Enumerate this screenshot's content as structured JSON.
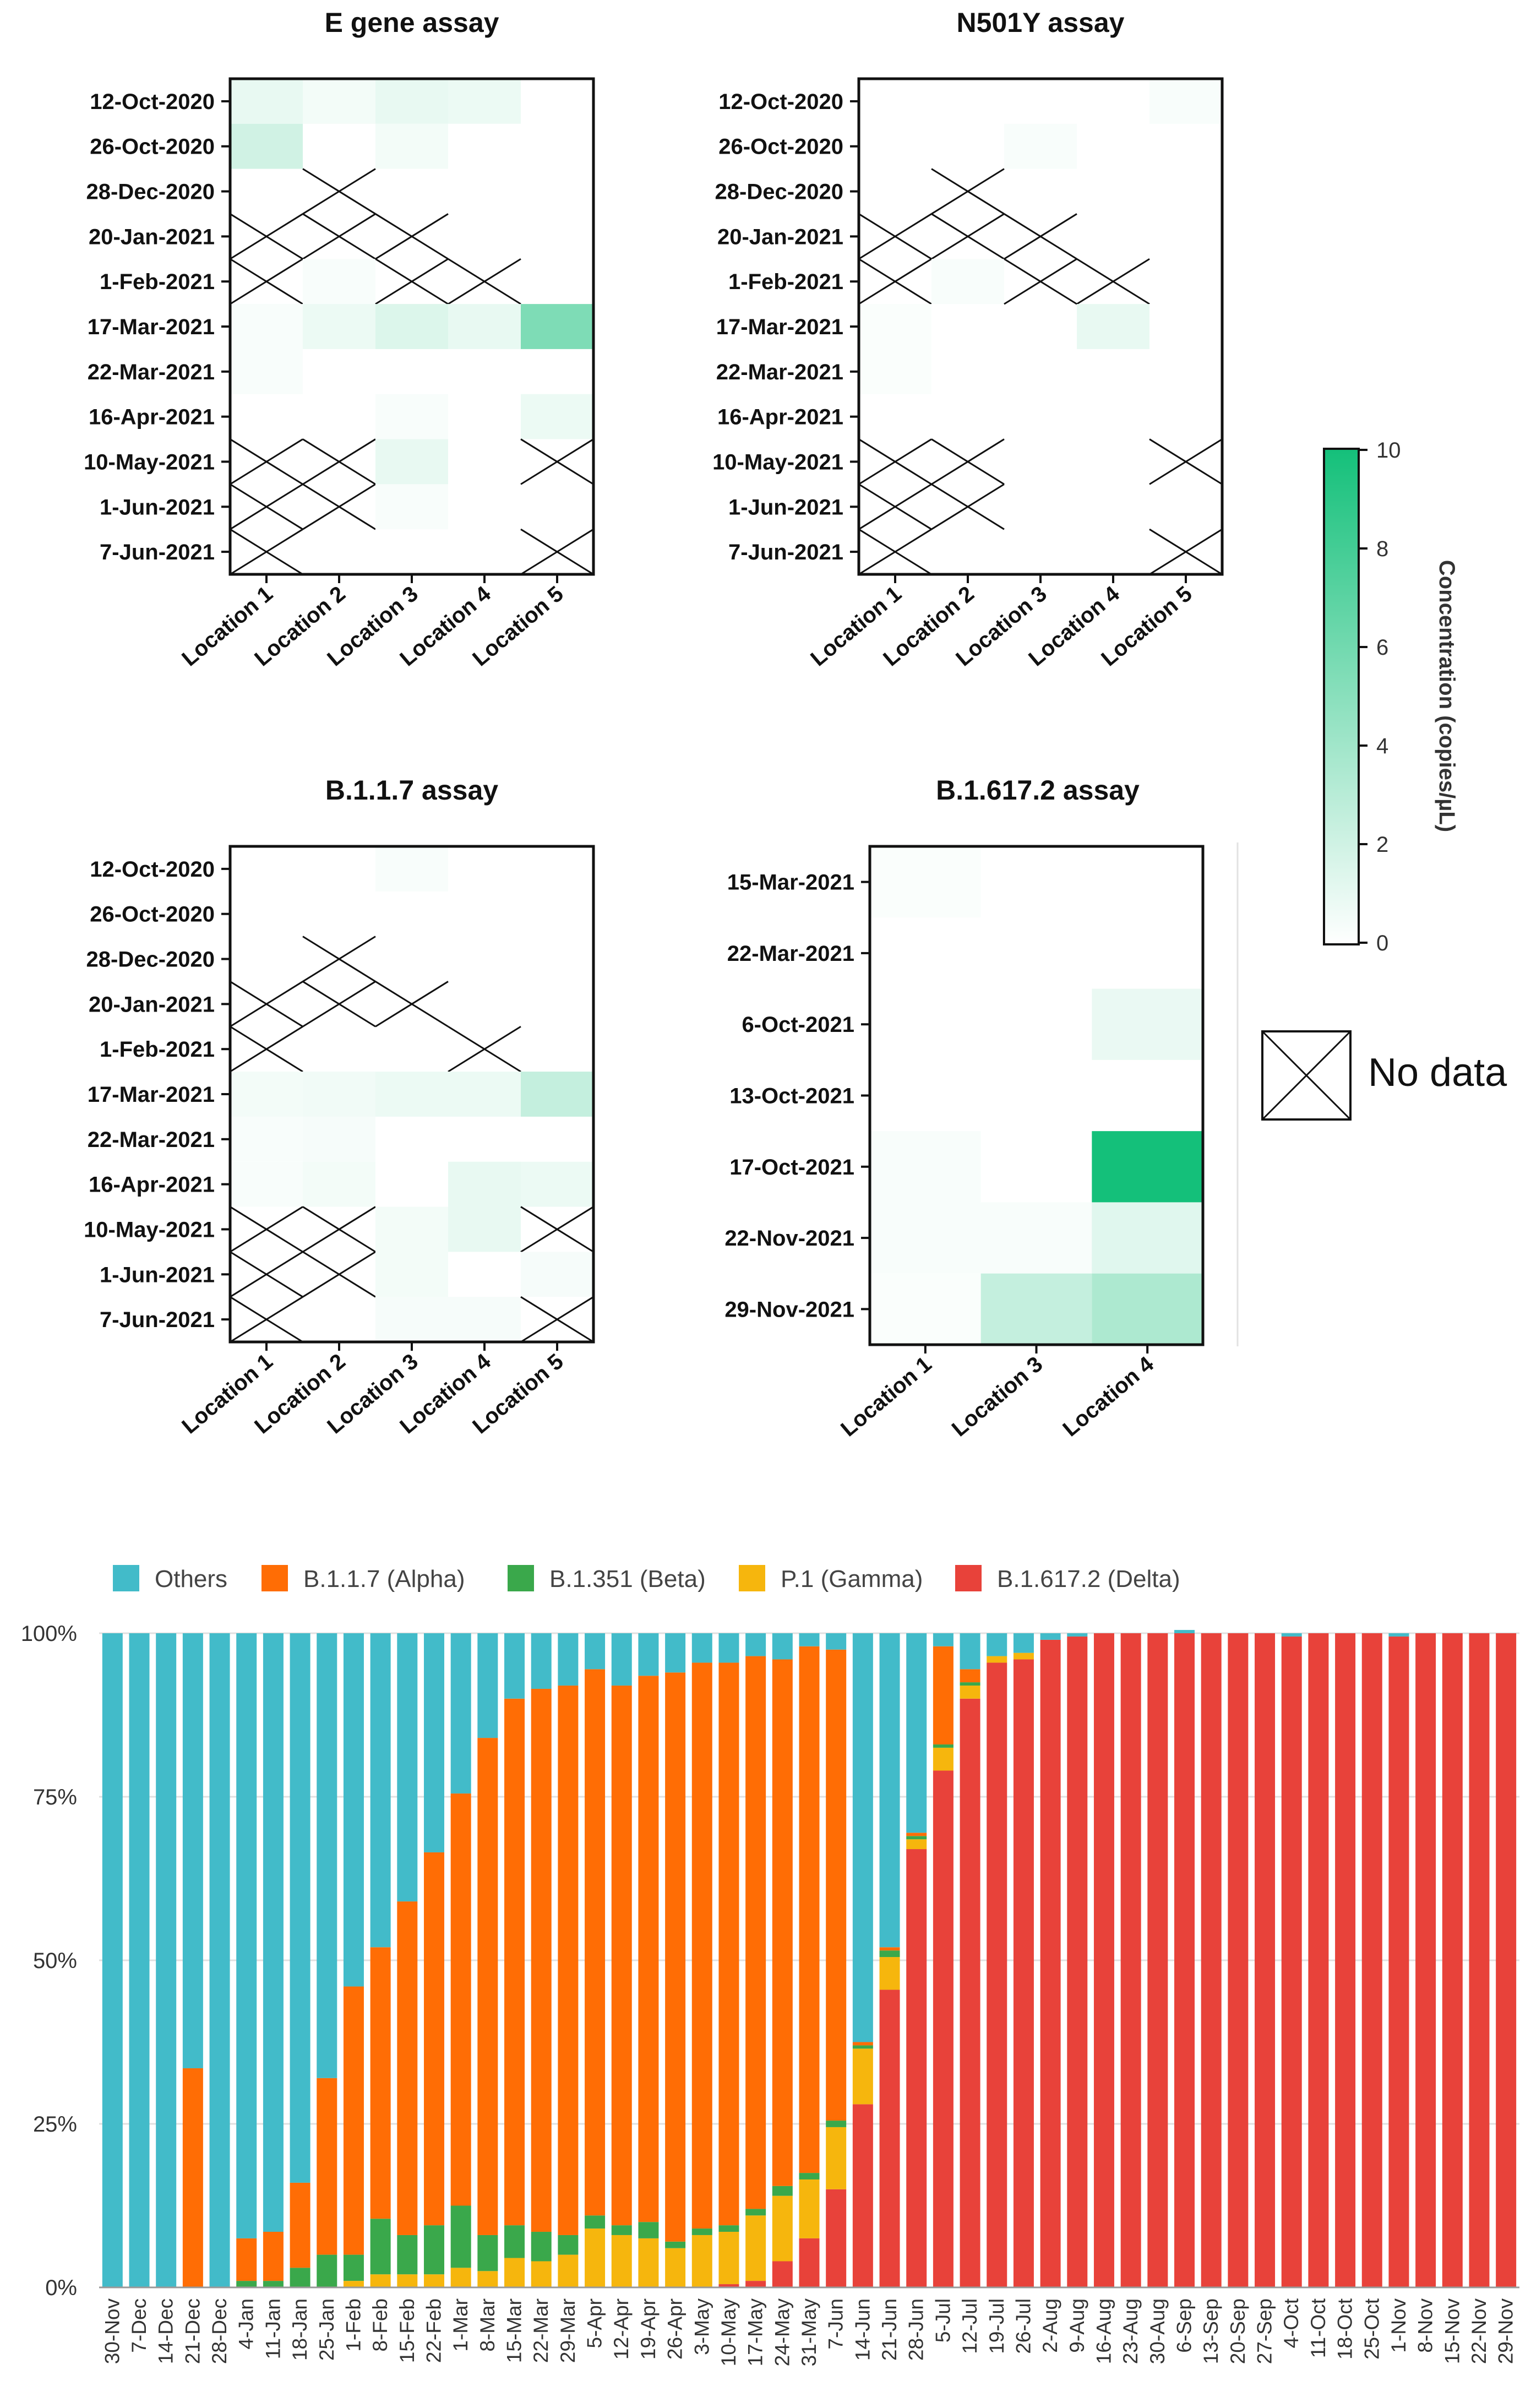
{
  "figure": {
    "no_data_label": "No data",
    "colorbar": {
      "title": "Concentration (copies/µL)",
      "ticks": [
        "0",
        "2",
        "4",
        "6",
        "8",
        "10"
      ],
      "min": 0,
      "max": 10,
      "color_low": "#ffffff",
      "color_high": "#14c07a"
    }
  },
  "chart_data": [
    {
      "type": "heatmap",
      "title": "E gene assay",
      "rows": [
        "12-Oct-2020",
        "26-Oct-2020",
        "28-Dec-2020",
        "20-Jan-2021",
        "1-Feb-2021",
        "17-Mar-2021",
        "22-Mar-2021",
        "16-Apr-2021",
        "10-May-2021",
        "1-Jun-2021",
        "7-Jun-2021"
      ],
      "columns": [
        "Location 1",
        "Location 2",
        "Location 3",
        "Location 4",
        "Location 5"
      ],
      "values": [
        [
          1.0,
          0.5,
          1.0,
          0.8,
          0
        ],
        [
          2.0,
          0,
          0.5,
          0,
          0
        ],
        [
          0,
          null,
          0,
          0,
          0
        ],
        [
          null,
          null,
          null,
          0,
          0
        ],
        [
          null,
          0.3,
          null,
          null,
          0
        ],
        [
          0.3,
          0.8,
          1.5,
          1.0,
          5.5
        ],
        [
          0.3,
          0,
          0,
          0,
          0
        ],
        [
          0,
          0,
          0.3,
          0,
          0.8
        ],
        [
          null,
          null,
          1.0,
          0,
          null
        ],
        [
          null,
          null,
          0.3,
          0,
          0
        ],
        [
          null,
          0,
          0,
          0,
          null
        ]
      ]
    },
    {
      "type": "heatmap",
      "title": "N501Y assay",
      "rows": [
        "12-Oct-2020",
        "26-Oct-2020",
        "28-Dec-2020",
        "20-Jan-2021",
        "1-Feb-2021",
        "17-Mar-2021",
        "22-Mar-2021",
        "16-Apr-2021",
        "10-May-2021",
        "1-Jun-2021",
        "7-Jun-2021"
      ],
      "columns": [
        "Location 1",
        "Location 2",
        "Location 3",
        "Location 4",
        "Location 5"
      ],
      "values": [
        [
          0,
          0,
          0,
          0,
          0.3
        ],
        [
          0,
          0,
          0.3,
          0,
          0
        ],
        [
          0,
          null,
          0,
          0,
          0
        ],
        [
          null,
          null,
          null,
          0,
          0
        ],
        [
          null,
          0.3,
          null,
          null,
          0
        ],
        [
          0.2,
          0,
          0,
          1.0,
          0
        ],
        [
          0.2,
          0,
          0,
          0,
          0
        ],
        [
          0,
          0,
          0,
          0,
          0
        ],
        [
          null,
          null,
          0,
          0,
          null
        ],
        [
          null,
          null,
          0,
          0,
          0
        ],
        [
          null,
          0,
          0,
          0,
          null
        ]
      ]
    },
    {
      "type": "heatmap",
      "title": "B.1.1.7 assay",
      "rows": [
        "12-Oct-2020",
        "26-Oct-2020",
        "28-Dec-2020",
        "20-Jan-2021",
        "1-Feb-2021",
        "17-Mar-2021",
        "22-Mar-2021",
        "16-Apr-2021",
        "10-May-2021",
        "1-Jun-2021",
        "7-Jun-2021"
      ],
      "columns": [
        "Location 1",
        "Location 2",
        "Location 3",
        "Location 4",
        "Location 5"
      ],
      "values": [
        [
          0,
          0,
          0.3,
          0,
          0
        ],
        [
          0,
          0,
          0,
          0,
          0
        ],
        [
          0,
          null,
          0,
          0,
          0
        ],
        [
          null,
          null,
          null,
          0,
          0
        ],
        [
          null,
          0,
          0,
          null,
          0
        ],
        [
          0.5,
          0.6,
          0.8,
          0.8,
          2.5
        ],
        [
          0.3,
          0.4,
          0,
          0,
          0
        ],
        [
          0.3,
          0.5,
          0,
          1.0,
          0.8
        ],
        [
          null,
          null,
          0.5,
          1.0,
          null
        ],
        [
          null,
          null,
          0.5,
          0,
          0.4
        ],
        [
          null,
          0,
          0.4,
          0.4,
          null
        ]
      ]
    },
    {
      "type": "heatmap",
      "title": "B.1.617.2 assay",
      "rows": [
        "15-Mar-2021",
        "22-Mar-2021",
        "6-Oct-2021",
        "13-Oct-2021",
        "17-Oct-2021",
        "22-Nov-2021",
        "29-Nov-2021"
      ],
      "columns": [
        "Location 1",
        "Location 3",
        "Location 4"
      ],
      "values": [
        [
          0.2,
          0,
          0
        ],
        [
          0,
          0,
          0
        ],
        [
          0,
          0,
          0.9
        ],
        [
          0,
          0,
          0
        ],
        [
          0.3,
          0,
          10
        ],
        [
          0.3,
          0.3,
          1.3
        ],
        [
          0.2,
          2.5,
          3.5
        ]
      ]
    },
    {
      "type": "bar",
      "stacked": true,
      "ylim": [
        0,
        100
      ],
      "ytick_labels": [
        "0%",
        "25%",
        "50%",
        "75%",
        "100%"
      ],
      "categories": [
        "30-Nov",
        "7-Dec",
        "14-Dec",
        "21-Dec",
        "28-Dec",
        "4-Jan",
        "11-Jan",
        "18-Jan",
        "25-Jan",
        "1-Feb",
        "8-Feb",
        "15-Feb",
        "22-Feb",
        "1-Mar",
        "8-Mar",
        "15-Mar",
        "22-Mar",
        "29-Mar",
        "5-Apr",
        "12-Apr",
        "19-Apr",
        "26-Apr",
        "3-May",
        "10-May",
        "17-May",
        "24-May",
        "31-May",
        "7-Jun",
        "14-Jun",
        "21-Jun",
        "28-Jun",
        "5-Jul",
        "12-Jul",
        "19-Jul",
        "26-Jul",
        "2-Aug",
        "9-Aug",
        "16-Aug",
        "23-Aug",
        "30-Aug",
        "6-Sep",
        "13-Sep",
        "20-Sep",
        "27-Sep",
        "4-Oct",
        "11-Oct",
        "18-Oct",
        "25-Oct",
        "1-Nov",
        "8-Nov",
        "15-Nov",
        "22-Nov",
        "29-Nov"
      ],
      "series": [
        {
          "name": "B.1.617.2 (Delta)",
          "color": "#e8423a",
          "values": [
            0,
            0,
            0,
            0,
            0,
            0,
            0,
            0,
            0,
            0,
            0,
            0,
            0,
            0,
            0,
            0,
            0,
            0,
            0,
            0,
            0,
            0,
            0,
            0.5,
            1,
            4,
            7.5,
            15,
            28,
            45.5,
            67,
            79,
            90,
            95.5,
            96,
            99,
            99.5,
            100,
            100,
            100,
            100,
            100,
            100,
            100,
            99.5,
            100,
            100,
            100,
            99.5,
            100,
            100,
            100,
            100
          ]
        },
        {
          "name": "P.1 (Gamma)",
          "color": "#f6b60d",
          "values": [
            0,
            0,
            0,
            0,
            0,
            0,
            0,
            0,
            0,
            1,
            2,
            2,
            2,
            3,
            2.5,
            4.5,
            4,
            5,
            9,
            8,
            7.5,
            6,
            8,
            8,
            10,
            10,
            9,
            9.5,
            8.5,
            5,
            1.5,
            3.5,
            2,
            1,
            1,
            0,
            0,
            0,
            0,
            0,
            0,
            0,
            0,
            0,
            0,
            0,
            0,
            0,
            0,
            0,
            0,
            0,
            0
          ]
        },
        {
          "name": "B.1.351 (Beta)",
          "color": "#3aa84b",
          "values": [
            0,
            0,
            0,
            0,
            0,
            1,
            1,
            3,
            5,
            4,
            8.5,
            6,
            7.5,
            9.5,
            5.5,
            5,
            4.5,
            3,
            2,
            1.5,
            2.5,
            1,
            1,
            1,
            1,
            1.5,
            1,
            1,
            0.5,
            1,
            0.5,
            0.5,
            0.5,
            0,
            0,
            0,
            0,
            0,
            0,
            0,
            0,
            0,
            0,
            0,
            0,
            0,
            0,
            0,
            0,
            0,
            0,
            0,
            0
          ]
        },
        {
          "name": "B.1.1.7 (Alpha)",
          "color": "#ff6d05",
          "values": [
            0,
            0,
            0,
            33.5,
            0,
            6.5,
            7.5,
            13,
            27,
            41,
            41.5,
            51,
            57,
            63,
            76,
            80.5,
            83,
            84,
            83.5,
            82.5,
            83.5,
            87,
            86.5,
            86,
            84.5,
            80.5,
            80.5,
            72,
            0.5,
            0.5,
            0.5,
            15,
            2,
            0,
            0,
            0,
            0,
            0,
            0,
            0,
            0,
            0,
            0,
            0,
            0,
            0,
            0,
            0,
            0,
            0,
            0,
            0,
            0
          ]
        },
        {
          "name": "Others",
          "color": "#42bbc9",
          "values": [
            100,
            100,
            100,
            66.5,
            100,
            92.5,
            91.5,
            84,
            68,
            54,
            48,
            41,
            33.5,
            24.5,
            16,
            10,
            8.5,
            8,
            5.5,
            8,
            6.5,
            6,
            4.5,
            4.5,
            3.5,
            4,
            2,
            2.5,
            62.5,
            48,
            30.5,
            2,
            5.5,
            3.5,
            3,
            1,
            0.5,
            0,
            0,
            0,
            0.5,
            0,
            0,
            0,
            0.5,
            0,
            0,
            0,
            0.5,
            0,
            0,
            0,
            0
          ]
        }
      ],
      "legend_order": [
        "Others",
        "B.1.1.7 (Alpha)",
        "B.1.351 (Beta)",
        "P.1 (Gamma)",
        "B.1.617.2 (Delta)"
      ]
    }
  ]
}
